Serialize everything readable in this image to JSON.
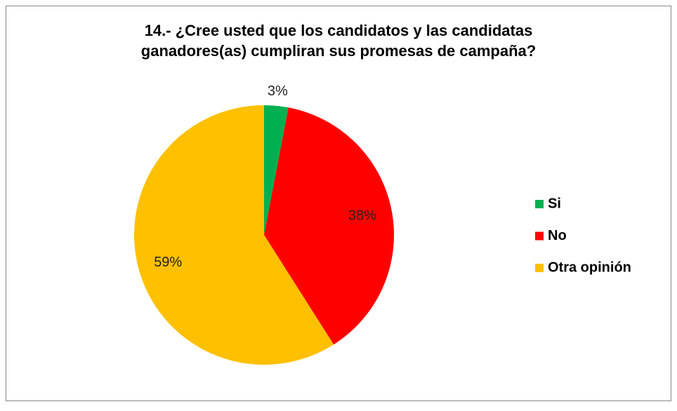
{
  "chart_data": {
    "type": "pie",
    "title": [
      "14.- ¿Cree usted que los candidatos y las candidatas",
      "ganadores(as) cumpliran sus promesas de campaña?"
    ],
    "categories": [
      "Si",
      "No",
      "Otra opinión"
    ],
    "values": [
      3,
      38,
      59
    ],
    "value_labels": [
      "3%",
      "38%",
      "59%"
    ],
    "colors": [
      "#00b050",
      "#ff0000",
      "#ffc000"
    ],
    "legend": "right"
  }
}
